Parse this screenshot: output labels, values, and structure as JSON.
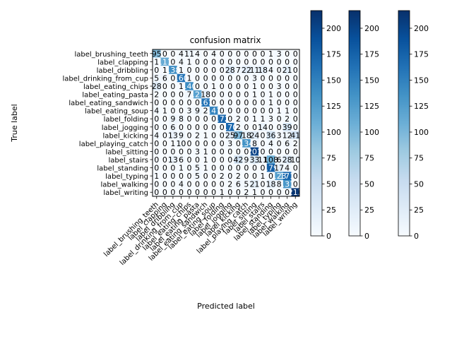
{
  "chart_data": {
    "type": "heatmap",
    "title": "confusion matrix",
    "xlabel": "Predicted label",
    "ylabel": "True label",
    "labels": [
      "label_brushing_teeth",
      "label_clapping",
      "label_dribbling",
      "label_drinking_from_cup",
      "label_eating_chips",
      "label_eating_pasta",
      "label_eating_sandwich",
      "label_eating_soup",
      "label_folding",
      "label_jogging",
      "label_kicking",
      "label_playing_catch",
      "label_sitting",
      "label_stairs",
      "label_standing",
      "label_typing",
      "label_walking",
      "label_writing"
    ],
    "matrix": [
      [
        95,
        0,
        0,
        4,
        11,
        4,
        0,
        4,
        0,
        0,
        0,
        0,
        0,
        0,
        1,
        3,
        0,
        0
      ],
      [
        1,
        111,
        0,
        4,
        1,
        0,
        0,
        0,
        0,
        0,
        0,
        0,
        0,
        0,
        0,
        0,
        0,
        0
      ],
      [
        0,
        1,
        138,
        1,
        0,
        0,
        0,
        0,
        0,
        28,
        7,
        22,
        11,
        18,
        4,
        0,
        21,
        0
      ],
      [
        5,
        6,
        0,
        160,
        1,
        0,
        0,
        0,
        0,
        0,
        0,
        0,
        3,
        0,
        0,
        0,
        0,
        0
      ],
      [
        28,
        0,
        0,
        1,
        140,
        0,
        0,
        1,
        0,
        0,
        0,
        0,
        1,
        0,
        0,
        3,
        0,
        0
      ],
      [
        2,
        0,
        0,
        0,
        7,
        121,
        18,
        0,
        0,
        0,
        0,
        0,
        1,
        0,
        1,
        0,
        0,
        0
      ],
      [
        0,
        0,
        0,
        0,
        0,
        0,
        161,
        0,
        0,
        0,
        0,
        0,
        0,
        0,
        1,
        0,
        0,
        0
      ],
      [
        4,
        1,
        0,
        0,
        3,
        9,
        2,
        147,
        0,
        0,
        0,
        0,
        0,
        0,
        0,
        1,
        1,
        0
      ],
      [
        0,
        0,
        9,
        8,
        0,
        0,
        0,
        0,
        172,
        0,
        2,
        0,
        1,
        1,
        3,
        0,
        2,
        0
      ],
      [
        0,
        0,
        6,
        0,
        0,
        0,
        0,
        0,
        0,
        170,
        2,
        0,
        0,
        14,
        0,
        0,
        39,
        0
      ],
      [
        4,
        0,
        13,
        9,
        0,
        2,
        1,
        0,
        0,
        25,
        97,
        18,
        24,
        0,
        36,
        3,
        12,
        41
      ],
      [
        0,
        0,
        1,
        10,
        0,
        0,
        0,
        0,
        0,
        3,
        0,
        134,
        8,
        0,
        4,
        0,
        6,
        2
      ],
      [
        0,
        0,
        0,
        0,
        0,
        3,
        1,
        0,
        0,
        0,
        0,
        0,
        201,
        0,
        0,
        0,
        0,
        0
      ],
      [
        0,
        0,
        13,
        6,
        0,
        0,
        1,
        0,
        0,
        0,
        42,
        9,
        33,
        11,
        108,
        6,
        28,
        10
      ],
      [
        0,
        0,
        0,
        1,
        0,
        5,
        1,
        0,
        0,
        0,
        0,
        0,
        0,
        0,
        179,
        17,
        4,
        0
      ],
      [
        1,
        0,
        0,
        0,
        0,
        5,
        0,
        0,
        2,
        0,
        2,
        0,
        0,
        1,
        0,
        123,
        171,
        0
      ],
      [
        0,
        0,
        0,
        4,
        0,
        0,
        0,
        0,
        0,
        2,
        6,
        5,
        21,
        0,
        18,
        8,
        131,
        0
      ],
      [
        0,
        0,
        0,
        0,
        0,
        0,
        0,
        0,
        1,
        0,
        0,
        2,
        1,
        0,
        0,
        0,
        0,
        213
      ]
    ],
    "colormap": "Blues",
    "vmin": 0,
    "vmax": 217,
    "colorbar_ticks": [
      0,
      25,
      50,
      75,
      100,
      125,
      150,
      175,
      200
    ],
    "colorbar_count": 3,
    "colors": {
      "low": "#f7fbff",
      "high": "#08306b"
    }
  }
}
